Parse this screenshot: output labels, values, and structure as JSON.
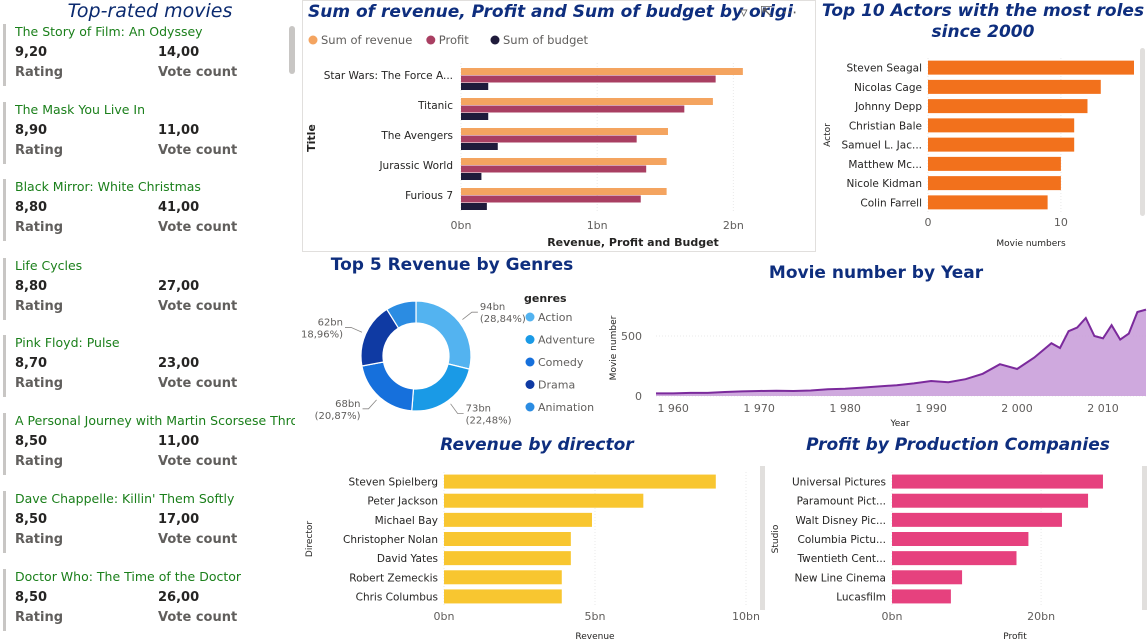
{
  "movies_panel": {
    "title": "Top-rated movies",
    "rating_label": "Rating",
    "vote_label": "Vote count",
    "items": [
      {
        "title": "The Story of Film: An Odyssey",
        "rating": "9,20",
        "votes": "14,00"
      },
      {
        "title": "The Mask You Live In",
        "rating": "8,90",
        "votes": "11,00"
      },
      {
        "title": "Black Mirror: White Christmas",
        "rating": "8,80",
        "votes": "41,00"
      },
      {
        "title": "Life Cycles",
        "rating": "8,80",
        "votes": "27,00"
      },
      {
        "title": "Pink Floyd: Pulse",
        "rating": "8,70",
        "votes": "23,00"
      },
      {
        "title": "A Personal Journey with Martin Scorsese Thro...",
        "rating": "8,50",
        "votes": "11,00"
      },
      {
        "title": "Dave Chappelle: Killin' Them Softly",
        "rating": "8,50",
        "votes": "17,00"
      },
      {
        "title": "Doctor Who: The Time of the Doctor",
        "rating": "8,50",
        "votes": "26,00"
      }
    ]
  },
  "toolbar_icons": [
    "filter-icon",
    "focus-mode-icon",
    "more-options-icon"
  ],
  "chart_data": [
    {
      "id": "revenue-profit-budget",
      "type": "bar",
      "orientation": "horizontal",
      "title": "Sum of revenue, Profit and Sum of budget by orig",
      "title_suffix": "i",
      "xlabel": "Revenue, Profit and Budget",
      "ylabel": "Title",
      "categories": [
        "Star Wars: The Force A...",
        "Titanic",
        "The Avengers",
        "Jurassic World",
        "Furious 7"
      ],
      "series": [
        {
          "name": "Sum of revenue",
          "color": "#f4a460",
          "values": [
            2.07,
            1.85,
            1.52,
            1.51,
            1.51
          ]
        },
        {
          "name": "Profit",
          "color": "#a93f62",
          "values": [
            1.87,
            1.64,
            1.29,
            1.36,
            1.32
          ]
        },
        {
          "name": "Sum of budget",
          "color": "#1f1b3b",
          "values": [
            0.2,
            0.2,
            0.27,
            0.15,
            0.19
          ]
        }
      ],
      "xticks": [
        {
          "v": 0,
          "label": "0bn"
        },
        {
          "v": 1,
          "label": "1bn"
        },
        {
          "v": 2,
          "label": "2bn"
        }
      ],
      "xlim": [
        0,
        2.35
      ],
      "legend": "top-left"
    },
    {
      "id": "top-actors",
      "type": "bar",
      "orientation": "horizontal",
      "title": "Top 10 Actors with the most roles since 2000",
      "title_lines": [
        "Top 10 Actors with the most roles",
        "since 2000"
      ],
      "xlabel": "Movie numbers",
      "ylabel": "Actor",
      "color": "#f2711c",
      "categories": [
        "Steven Seagal",
        "Nicolas Cage",
        "Johnny Depp",
        "Christian Bale",
        "Samuel L. Jac...",
        "Matthew Mc...",
        "Nicole Kidman",
        "Colin Farrell"
      ],
      "values": [
        15.5,
        13,
        12,
        11,
        11,
        10,
        10,
        9
      ],
      "xticks": [
        {
          "v": 0,
          "label": "0"
        },
        {
          "v": 10,
          "label": "10"
        }
      ],
      "xlim": [
        0,
        15.5
      ]
    },
    {
      "id": "genre-revenue",
      "type": "pie",
      "donut": true,
      "title": "Top 5 Revenue by Genres",
      "legend_title": "genres",
      "legend": "right",
      "slices": [
        {
          "name": "Action",
          "value": 94,
          "label": "94bn",
          "pct": "(28,84%)",
          "color": "#53b3f0"
        },
        {
          "name": "Adventure",
          "value": 73,
          "label": "73bn",
          "pct": "(22,48%)",
          "color": "#1a9ae6"
        },
        {
          "name": "Comedy",
          "value": 68,
          "label": "68bn",
          "pct": "(20,87%)",
          "color": "#1670dc"
        },
        {
          "name": "Drama",
          "value": 62,
          "label": "62bn",
          "pct": "(18,96%)",
          "color": "#0f3aa3"
        },
        {
          "name": "Animation",
          "value": 29,
          "label": "",
          "pct": "",
          "color": "#2b8ce2"
        }
      ]
    },
    {
      "id": "movies-by-year",
      "type": "area",
      "title": "Movie number by Year",
      "xlabel": "Year",
      "ylabel": "Movie number",
      "color": "#7b2a9c",
      "fill": "#c79ad8",
      "x": [
        1958,
        1960,
        1962,
        1964,
        1966,
        1968,
        1970,
        1972,
        1974,
        1976,
        1978,
        1980,
        1982,
        1984,
        1986,
        1988,
        1990,
        1992,
        1994,
        1996,
        1998,
        2000,
        2002,
        2004,
        2005,
        2006,
        2007,
        2008,
        2009,
        2010,
        2011,
        2012,
        2013,
        2014,
        2015
      ],
      "y": [
        22,
        22,
        26,
        26,
        33,
        38,
        42,
        44,
        42,
        46,
        56,
        60,
        70,
        80,
        90,
        105,
        125,
        115,
        140,
        185,
        265,
        225,
        320,
        440,
        400,
        540,
        570,
        650,
        500,
        480,
        590,
        470,
        520,
        700,
        720
      ],
      "xticks": [
        {
          "v": 1960,
          "label": "1 960"
        },
        {
          "v": 1970,
          "label": "1 970"
        },
        {
          "v": 1980,
          "label": "1 980"
        },
        {
          "v": 1990,
          "label": "1 990"
        },
        {
          "v": 2000,
          "label": "2 000"
        },
        {
          "v": 2010,
          "label": "2 010"
        }
      ],
      "yticks": [
        {
          "v": 0,
          "label": "0"
        },
        {
          "v": 500,
          "label": "500"
        }
      ],
      "xlim": [
        1958,
        2015
      ],
      "ylim": [
        0,
        800
      ]
    },
    {
      "id": "revenue-by-director",
      "type": "bar",
      "orientation": "horizontal",
      "title": "Revenue by director",
      "xlabel": "Revenue",
      "ylabel": "Director",
      "color": "#f8c630",
      "categories": [
        "Steven Spielberg",
        "Peter Jackson",
        "Michael Bay",
        "Christopher Nolan",
        "David Yates",
        "Robert Zemeckis",
        "Chris Columbus"
      ],
      "values": [
        9.0,
        6.6,
        4.9,
        4.2,
        4.2,
        3.9,
        3.9
      ],
      "xticks": [
        {
          "v": 0,
          "label": "0bn"
        },
        {
          "v": 5,
          "label": "5bn"
        },
        {
          "v": 10,
          "label": "10bn"
        }
      ],
      "xlim": [
        0,
        10
      ]
    },
    {
      "id": "profit-by-company",
      "type": "bar",
      "orientation": "horizontal",
      "title": "Profit by Production Companies",
      "xlabel": "Profit",
      "ylabel": "Studio",
      "color": "#e6417e",
      "categories": [
        "Universal Pictures",
        "Paramount Pict...",
        "Walt Disney Pic...",
        "Columbia Pictu...",
        "Twentieth Cent...",
        "New Line Cinema",
        "Lucasfilm"
      ],
      "values": [
        28.3,
        26.3,
        22.8,
        18.3,
        16.7,
        9.4,
        7.9
      ],
      "xticks": [
        {
          "v": 0,
          "label": "0bn"
        },
        {
          "v": 20,
          "label": "20bn"
        }
      ],
      "xlim": [
        0,
        33
      ]
    }
  ]
}
